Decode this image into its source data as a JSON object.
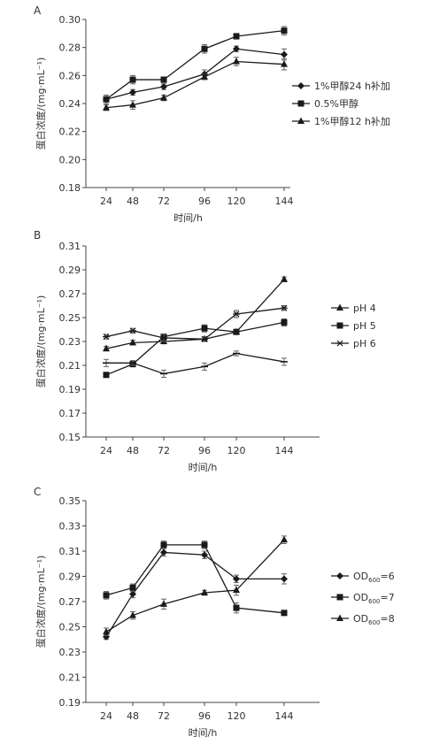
{
  "chart_data": [
    {
      "panel": "A",
      "type": "line",
      "xlabel": "时间/h",
      "ylabel": "蛋白浓度/(mg·mL⁻¹)",
      "x": [
        24,
        48,
        72,
        96,
        120,
        144
      ],
      "x_tick_labels": [
        "24",
        "48",
        "72",
        "96",
        "120",
        "144"
      ],
      "ylim": [
        0.18,
        0.3
      ],
      "y_ticks": [
        0.18,
        0.2,
        0.22,
        0.24,
        0.26,
        0.28,
        0.3
      ],
      "y_tick_labels": [
        "0.18",
        "0.20",
        "0.22",
        "0.24",
        "0.26",
        "0.28",
        "0.30"
      ],
      "legend_position": "right",
      "series": [
        {
          "name": "1%甲醇24 h补加",
          "marker": "diamond",
          "values": [
            0.243,
            0.248,
            0.252,
            0.261,
            0.279,
            0.275
          ],
          "errors": [
            0.003,
            0.002,
            0.002,
            0.003,
            0.002,
            0.004
          ]
        },
        {
          "name": "0.5%甲醇",
          "marker": "square",
          "values": [
            0.243,
            0.257,
            0.257,
            0.279,
            0.288,
            0.292
          ],
          "errors": [
            0.003,
            0.003,
            0.002,
            0.003,
            0.002,
            0.003
          ]
        },
        {
          "name": "1%甲醇12 h补加",
          "marker": "triangle",
          "values": [
            0.237,
            0.239,
            0.244,
            0.259,
            0.27,
            0.268
          ],
          "errors": [
            0.002,
            0.003,
            0.002,
            0.002,
            0.003,
            0.004
          ]
        }
      ]
    },
    {
      "panel": "B",
      "type": "line",
      "xlabel": "时间/h",
      "ylabel": "蛋白浓度/(mg·mL⁻¹)",
      "x": [
        24,
        48,
        72,
        96,
        120,
        144
      ],
      "x_tick_labels": [
        "24",
        "48",
        "72",
        "96",
        "120",
        "144"
      ],
      "ylim": [
        0.15,
        0.31
      ],
      "y_ticks": [
        0.15,
        0.17,
        0.19,
        0.21,
        0.23,
        0.25,
        0.27,
        0.29,
        0.31
      ],
      "y_tick_labels": [
        "0.15",
        "0.17",
        "0.19",
        "0.21",
        "0.23",
        "0.25",
        "0.27",
        "0.29",
        "0.31"
      ],
      "legend_position": "right",
      "series": [
        {
          "name": "pH 4",
          "marker": "triangle",
          "values": [
            0.224,
            0.229,
            0.23,
            0.232,
            0.238,
            0.282
          ],
          "errors": [
            0.002,
            0.002,
            0.002,
            0.002,
            0.002,
            0.002
          ]
        },
        {
          "name": "pH 5",
          "marker": "square",
          "values": [
            0.202,
            0.211,
            0.234,
            0.241,
            0.238,
            0.246
          ],
          "errors": [
            0.002,
            0.002,
            0.002,
            0.003,
            0.002,
            0.003
          ]
        },
        {
          "name": "pH 6",
          "marker": "asterisk",
          "values": [
            0.234,
            0.239,
            0.233,
            0.232,
            0.253,
            0.258
          ],
          "errors": [
            0.002,
            0.002,
            0.003,
            0.002,
            0.003,
            0.002
          ]
        },
        {
          "name": "",
          "marker": "dash",
          "values": [
            0.212,
            0.212,
            0.203,
            0.209,
            0.22,
            0.213
          ],
          "errors": [
            0.003,
            0.002,
            0.003,
            0.003,
            0.002,
            0.003
          ]
        }
      ]
    },
    {
      "panel": "C",
      "type": "line",
      "xlabel": "时间/h",
      "ylabel": "蛋白浓度/(mg·mL⁻¹)",
      "x": [
        24,
        48,
        72,
        96,
        120,
        144
      ],
      "x_tick_labels": [
        "24",
        "48",
        "72",
        "96",
        "120",
        "144"
      ],
      "ylim": [
        0.19,
        0.35
      ],
      "y_ticks": [
        0.19,
        0.21,
        0.23,
        0.25,
        0.27,
        0.29,
        0.31,
        0.33,
        0.35
      ],
      "y_tick_labels": [
        "0.19",
        "0.21",
        "0.23",
        "0.25",
        "0.27",
        "0.29",
        "0.31",
        "0.33",
        "0.35"
      ],
      "legend_position": "right",
      "series": [
        {
          "name": "OD600=6",
          "marker": "diamond",
          "values": [
            0.242,
            0.276,
            0.309,
            0.307,
            0.288,
            0.288
          ],
          "errors": [
            0.002,
            0.003,
            0.003,
            0.003,
            0.003,
            0.004
          ]
        },
        {
          "name": "OD600=7",
          "marker": "square",
          "values": [
            0.275,
            0.281,
            0.315,
            0.315,
            0.265,
            0.261
          ],
          "errors": [
            0.003,
            0.003,
            0.003,
            0.003,
            0.004,
            0.002
          ]
        },
        {
          "name": "OD600=8",
          "marker": "triangle",
          "values": [
            0.246,
            0.259,
            0.268,
            0.277,
            0.279,
            0.319
          ],
          "errors": [
            0.003,
            0.003,
            0.004,
            0.002,
            0.004,
            0.003
          ]
        }
      ]
    }
  ],
  "panels": [
    {
      "label": "A",
      "legend": [
        "1%甲醇24 h补加",
        "0.5%甲醇",
        "1%甲醇12 h补加"
      ]
    },
    {
      "label": "B",
      "legend": [
        "pH 4",
        "pH 5",
        "pH 6"
      ]
    },
    {
      "label": "C",
      "legend": [
        {
          "base": "OD",
          "sub": "600",
          "tail": "=6"
        },
        {
          "base": "OD",
          "sub": "600",
          "tail": "=7"
        },
        {
          "base": "OD",
          "sub": "600",
          "tail": "=8"
        }
      ]
    }
  ],
  "colors": {
    "line": "#1a1a1a",
    "axis": "#444444",
    "error": "#555555",
    "text": "#333333"
  }
}
